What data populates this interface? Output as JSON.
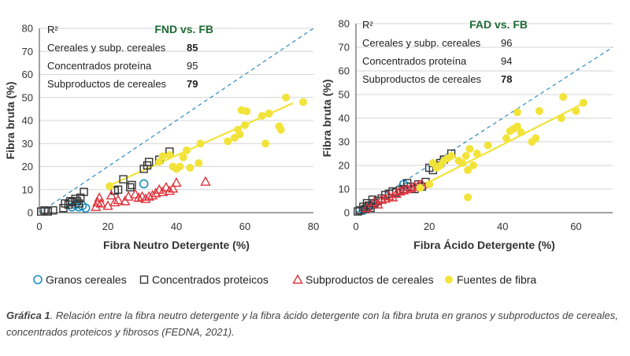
{
  "series_styles": [
    {
      "key": "granos",
      "marker": "circle",
      "color": "#1a8fc0"
    },
    {
      "key": "concentrados",
      "marker": "square",
      "color": "#333333"
    },
    {
      "key": "subproductos",
      "marker": "triangle",
      "color": "#e0323c"
    },
    {
      "key": "fibra",
      "marker": "dot",
      "color": "#f2e33a"
    }
  ],
  "legend": {
    "granos": "Granos cereales",
    "concentrados": "Concentrados proteicos",
    "subproductos": "Subproductos de cereales",
    "fibra": "Fuentes de fibra"
  },
  "caption": {
    "label": "Gráfica 1",
    "text": ". Relación entre la fibra neutro detergente y la fibra ácido detergente con la fibra bruta en granos y subproductos de cereales, concentrados proteicos y fibrosos (FEDNA, 2021)."
  },
  "colors": {
    "trend": "#f2e33a",
    "identity": "#2a8cc4",
    "r2_head": "#1e6b35",
    "grid": "#d6d6d6"
  },
  "chart_data": [
    {
      "type": "scatter",
      "xlabel": "Fibra Neutro Detergente (%)",
      "ylabel": "Fibra bruta (%)",
      "xlim": [
        0,
        80
      ],
      "ylim": [
        0,
        80
      ],
      "xticks": [
        0,
        20,
        40,
        60,
        80
      ],
      "yticks": [
        0,
        10,
        20,
        30,
        40,
        50,
        60,
        70,
        80
      ],
      "grid": "horizontal",
      "identity_line": true,
      "trendline": {
        "x": [
          20,
          74
        ],
        "y": [
          11.5,
          47.5
        ]
      },
      "r2_table": {
        "header_left": "R²",
        "header_right": "FND vs. FB",
        "rows": [
          {
            "label": "Cereales y subp. cereales",
            "value": "85",
            "style": "green-bold"
          },
          {
            "label": "Concentrados proteína",
            "value": "95",
            "style": "plain"
          },
          {
            "label": "Subproductos de cereales",
            "value": "79",
            "style": "dark-bold"
          }
        ]
      },
      "series": [
        {
          "key": "granos",
          "points": [
            [
              9.5,
              2.5
            ],
            [
              10.5,
              3.5
            ],
            [
              11.5,
              2.5
            ],
            [
              12.5,
              3
            ],
            [
              13.5,
              2
            ],
            [
              30.5,
              12.5
            ]
          ]
        },
        {
          "key": "concentrados",
          "points": [
            [
              0.5,
              0.5
            ],
            [
              1.5,
              1
            ],
            [
              2.5,
              0.5
            ],
            [
              4,
              1
            ],
            [
              7,
              2
            ],
            [
              7.5,
              4
            ],
            [
              8.5,
              3.5
            ],
            [
              9,
              5
            ],
            [
              9.5,
              4.5
            ],
            [
              10.5,
              6
            ],
            [
              11,
              5
            ],
            [
              11.5,
              4
            ],
            [
              12,
              6.5
            ],
            [
              13,
              9
            ],
            [
              22,
              9.5
            ],
            [
              23,
              10
            ],
            [
              24.5,
              14.5
            ],
            [
              26.5,
              11
            ],
            [
              27,
              12
            ],
            [
              30.5,
              19
            ],
            [
              31.5,
              20.5
            ],
            [
              32,
              22
            ],
            [
              35,
              23
            ],
            [
              38,
              26.5
            ]
          ]
        },
        {
          "key": "subproductos",
          "points": [
            [
              16.5,
              2.5
            ],
            [
              17,
              4.5
            ],
            [
              17.5,
              6.5
            ],
            [
              18,
              4
            ],
            [
              20,
              3
            ],
            [
              21,
              7.5
            ],
            [
              22,
              4.5
            ],
            [
              23,
              5.5
            ],
            [
              25,
              5
            ],
            [
              26,
              7
            ],
            [
              28,
              8
            ],
            [
              29,
              6.5
            ],
            [
              30,
              7
            ],
            [
              31,
              6
            ],
            [
              32,
              7
            ],
            [
              33,
              7.5
            ],
            [
              34,
              8.5
            ],
            [
              35,
              10
            ],
            [
              36,
              9
            ],
            [
              37,
              11
            ],
            [
              38,
              9.5
            ],
            [
              39,
              10.5
            ],
            [
              40,
              13
            ],
            [
              48.5,
              13.5
            ]
          ]
        },
        {
          "key": "fibra",
          "points": [
            [
              20.5,
              11.5
            ],
            [
              35,
              22
            ],
            [
              36,
              24.5
            ],
            [
              38,
              25
            ],
            [
              39,
              20
            ],
            [
              40,
              19
            ],
            [
              41,
              20
            ],
            [
              42,
              24
            ],
            [
              43,
              27
            ],
            [
              44,
              19.5
            ],
            [
              46.5,
              21.5
            ],
            [
              47,
              30
            ],
            [
              55,
              31
            ],
            [
              57,
              32.5
            ],
            [
              58,
              36
            ],
            [
              58.5,
              34
            ],
            [
              59,
              44.5
            ],
            [
              60,
              38
            ],
            [
              60.5,
              44
            ],
            [
              65,
              42
            ],
            [
              66,
              30
            ],
            [
              67,
              43
            ],
            [
              70,
              37.5
            ],
            [
              70.5,
              36
            ],
            [
              72,
              50
            ],
            [
              77,
              48
            ]
          ]
        }
      ]
    },
    {
      "type": "scatter",
      "xlabel": "Fibra Ácido Detergente (%)",
      "ylabel": "Fibra bruta (%)",
      "xlim": [
        0,
        70
      ],
      "ylim": [
        0,
        80
      ],
      "xticks": [
        0,
        20,
        40,
        60
      ],
      "yticks": [
        0,
        10,
        20,
        30,
        40,
        50,
        60,
        70,
        80
      ],
      "grid": "horizontal",
      "identity_line": true,
      "trendline": {
        "x": [
          17.5,
          63
        ],
        "y": [
          11,
          47
        ]
      },
      "r2_table": {
        "header_left": "R²",
        "header_right": "FAD vs. FB",
        "rows": [
          {
            "label": "Cereales y subp. cereales",
            "value": "96",
            "style": "plain"
          },
          {
            "label": "Concentrados proteína",
            "value": "94",
            "style": "plain"
          },
          {
            "label": "Subproductos de cereales",
            "value": "78",
            "style": "dark-bold"
          }
        ]
      },
      "series": [
        {
          "key": "granos",
          "points": [
            [
              2,
              1
            ],
            [
              3,
              2
            ],
            [
              4,
              3
            ],
            [
              5,
              3.5
            ],
            [
              13,
              12
            ],
            [
              14,
              11
            ]
          ]
        },
        {
          "key": "concentrados",
          "points": [
            [
              0.5,
              0.5
            ],
            [
              1,
              1
            ],
            [
              2,
              2.5
            ],
            [
              2.5,
              1.5
            ],
            [
              3,
              4
            ],
            [
              3.5,
              3
            ],
            [
              4,
              2
            ],
            [
              4.5,
              5.5
            ],
            [
              5,
              4
            ],
            [
              6,
              5
            ],
            [
              7,
              6
            ],
            [
              8,
              7.5
            ],
            [
              9,
              8
            ],
            [
              10,
              9
            ],
            [
              11,
              8.5
            ],
            [
              12,
              9.5
            ],
            [
              13,
              10
            ],
            [
              14,
              12.5
            ],
            [
              15,
              11
            ],
            [
              16,
              10
            ],
            [
              17,
              12
            ],
            [
              18,
              11
            ],
            [
              19,
              13
            ],
            [
              20,
              19
            ],
            [
              21,
              18
            ],
            [
              22,
              20
            ],
            [
              23,
              21
            ],
            [
              24,
              22.5
            ],
            [
              26,
              25
            ]
          ]
        },
        {
          "key": "subproductos",
          "points": [
            [
              3,
              2
            ],
            [
              5,
              4.5
            ],
            [
              6,
              3.5
            ],
            [
              7,
              5.5
            ],
            [
              8,
              6
            ],
            [
              9,
              7
            ],
            [
              10,
              6.5
            ],
            [
              11,
              8
            ],
            [
              12,
              9
            ],
            [
              13,
              9.5
            ],
            [
              14,
              10
            ],
            [
              15,
              10.5
            ],
            [
              16,
              11
            ],
            [
              17,
              11.5
            ],
            [
              18,
              12
            ]
          ]
        },
        {
          "key": "fibra",
          "points": [
            [
              17.5,
              10.5
            ],
            [
              20,
              12
            ],
            [
              21,
              21
            ],
            [
              22,
              19
            ],
            [
              23,
              20
            ],
            [
              24,
              22
            ],
            [
              25,
              23
            ],
            [
              26,
              24
            ],
            [
              28,
              22
            ],
            [
              29,
              21
            ],
            [
              30,
              24
            ],
            [
              30.5,
              18
            ],
            [
              31,
              27
            ],
            [
              32,
              20
            ],
            [
              33,
              25
            ],
            [
              36,
              28.5
            ],
            [
              41,
              31.5
            ],
            [
              42,
              34.5
            ],
            [
              43,
              35.5
            ],
            [
              44,
              36.5
            ],
            [
              44,
              42.5
            ],
            [
              45,
              34
            ],
            [
              48,
              30
            ],
            [
              49,
              31.5
            ],
            [
              50,
              43
            ],
            [
              56,
              40
            ],
            [
              56.5,
              49
            ],
            [
              60,
              43
            ],
            [
              62,
              46.5
            ],
            [
              30.5,
              6.5
            ]
          ]
        }
      ]
    }
  ]
}
